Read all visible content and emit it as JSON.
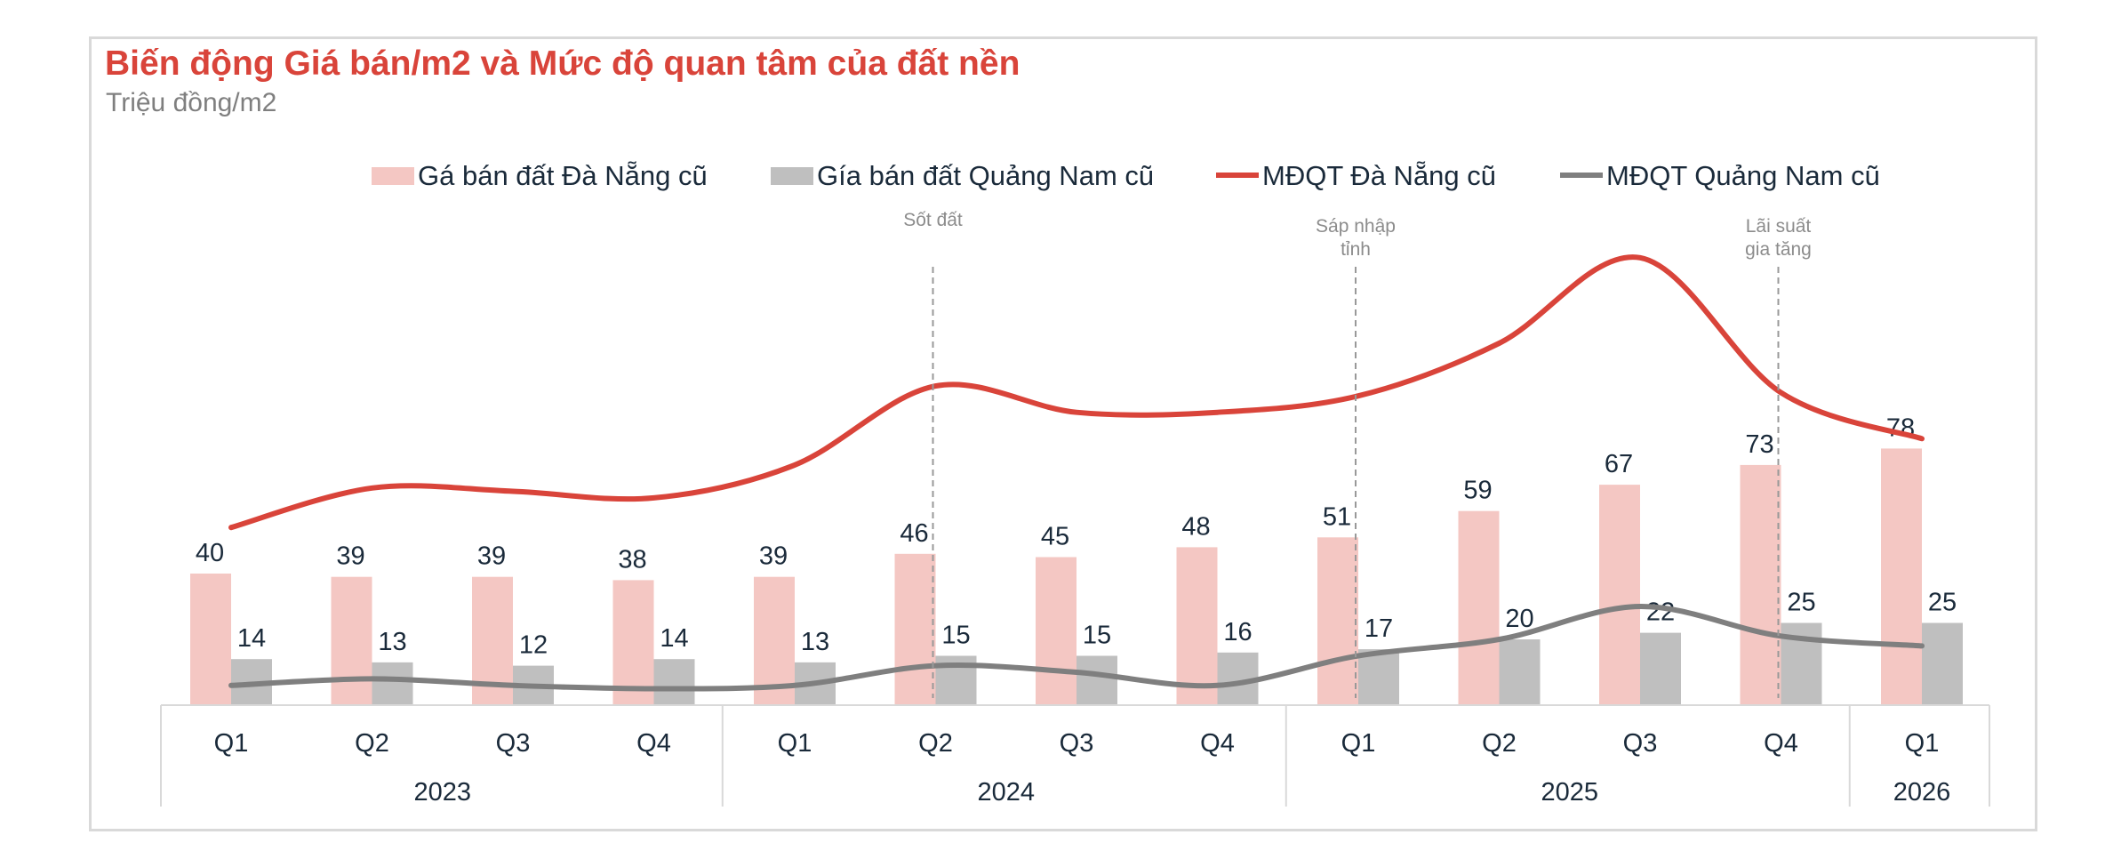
{
  "chart_data": {
    "type": "bar",
    "title": "Biến động Giá bán/m2 và Mức độ quan tâm của đất nền",
    "subtitle": "Triệu đồng/m2",
    "categories": [
      "Q1",
      "Q2",
      "Q3",
      "Q4",
      "Q1",
      "Q2",
      "Q3",
      "Q4",
      "Q1",
      "Q2",
      "Q3",
      "Q4",
      "Q1"
    ],
    "category_groups": [
      {
        "label": "2023",
        "count": 4
      },
      {
        "label": "2024",
        "count": 4
      },
      {
        "label": "2025",
        "count": 4
      },
      {
        "label": "2026",
        "count": 1
      }
    ],
    "ylim": [
      0,
      160
    ],
    "grid": false,
    "legend_position": "top",
    "series": [
      {
        "name": "Gá bán đất Đà Nẵng cũ",
        "kind": "bar",
        "color": "#f4c7c3",
        "values": [
          40,
          39,
          39,
          38,
          39,
          46,
          45,
          48,
          51,
          59,
          67,
          73,
          78
        ]
      },
      {
        "name": "Gía bán đất Quảng Nam cũ",
        "kind": "bar",
        "color": "#bfbfbf",
        "values": [
          14,
          13,
          12,
          14,
          13,
          15,
          15,
          16,
          17,
          20,
          22,
          25,
          25
        ]
      },
      {
        "name": "MĐQT Đà Nẵng cũ",
        "kind": "line",
        "color": "#d9443a",
        "values": [
          54,
          66,
          65,
          63,
          73,
          97,
          89,
          89,
          94,
          110,
          136,
          95,
          81
        ]
      },
      {
        "name": "MĐQT Quảng Nam cũ",
        "kind": "line",
        "color": "#7f7f7f",
        "values": [
          6,
          8,
          6,
          5,
          6,
          12,
          10,
          6,
          15,
          20,
          30,
          21,
          18
        ]
      }
    ],
    "annotations": [
      {
        "text": [
          "Sốt đất"
        ],
        "index": 5
      },
      {
        "text": [
          "Sáp nhập",
          "tỉnh"
        ],
        "index": 8
      },
      {
        "text": [
          "Lãi suất",
          "gia tăng"
        ],
        "index": 11
      }
    ]
  }
}
